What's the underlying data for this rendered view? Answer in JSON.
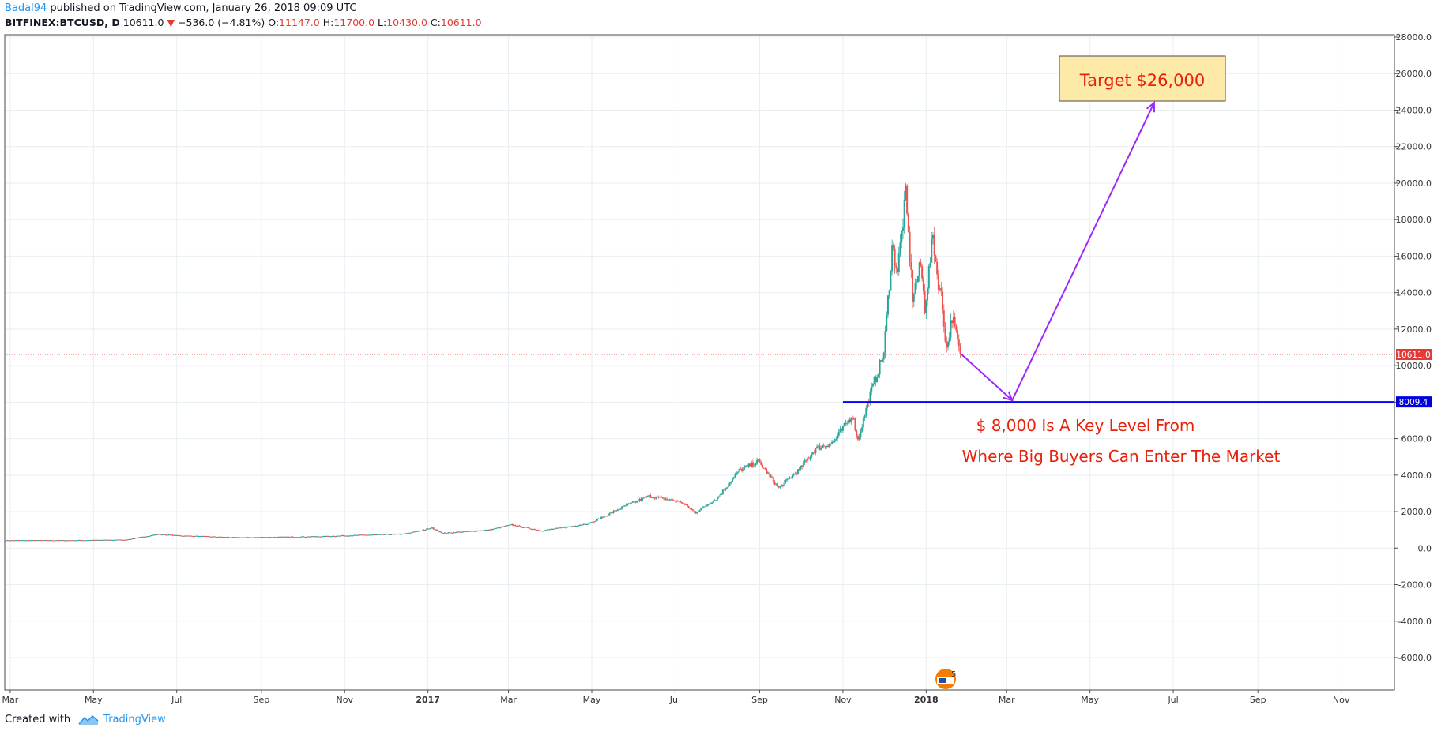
{
  "header": {
    "user": "Badal94",
    "published": "published on TradingView.com, January 26, 2018 09:09 UTC",
    "symbol": "BITFINEX:BTCUSD, D",
    "last": "10611.0",
    "change": "−536.0 (−4.81%)",
    "o_label": "O:",
    "o_value": "11147.0",
    "h_label": "H:",
    "h_value": "11700.0",
    "l_label": "L:",
    "l_value": "10430.0",
    "c_label": "C:",
    "c_value": "10611.0"
  },
  "footer": {
    "created_with": "Created with",
    "brand": "TradingView"
  },
  "colors": {
    "up": "#26a69a",
    "down": "#ef5350",
    "level": "#0000ff",
    "arrow": "#9c27ff",
    "grid": "#e8eef2"
  },
  "chart_data": {
    "type": "candlestick",
    "symbol": "BITFINEX:BTCUSD",
    "interval": "D",
    "ylim": [
      -7500,
      28000
    ],
    "y_ticks": [
      28000,
      26000,
      24000,
      22000,
      20000,
      18000,
      16000,
      14000,
      12000,
      10000,
      8000,
      6000,
      4000,
      2000,
      0,
      -2000,
      -4000,
      -6000
    ],
    "y_tick_labels": [
      "28000.0",
      "26000.0",
      "24000.0",
      "22000.0",
      "20000.0",
      "18000.0",
      "16000.0",
      "14000.0",
      "12000.0",
      "10000.0",
      "8000.0",
      "6000.0",
      "4000.0",
      "2000.0",
      "0.0",
      "-2000.0",
      "-4000.0",
      "-6000.0"
    ],
    "x_range": [
      "2016-02-26",
      "2018-12-10"
    ],
    "x_ticks": [
      {
        "date": "2016-03-01",
        "label": "Mar"
      },
      {
        "date": "2016-05-01",
        "label": "May"
      },
      {
        "date": "2016-07-01",
        "label": "Jul"
      },
      {
        "date": "2016-09-01",
        "label": "Sep"
      },
      {
        "date": "2016-11-01",
        "label": "Nov"
      },
      {
        "date": "2017-01-01",
        "label": "2017",
        "bold": true
      },
      {
        "date": "2017-03-01",
        "label": "Mar"
      },
      {
        "date": "2017-05-01",
        "label": "May"
      },
      {
        "date": "2017-07-01",
        "label": "Jul"
      },
      {
        "date": "2017-09-01",
        "label": "Sep"
      },
      {
        "date": "2017-11-01",
        "label": "Nov"
      },
      {
        "date": "2018-01-01",
        "label": "2018",
        "bold": true
      },
      {
        "date": "2018-03-01",
        "label": "Mar"
      },
      {
        "date": "2018-05-01",
        "label": "May"
      },
      {
        "date": "2018-07-01",
        "label": "Jul"
      },
      {
        "date": "2018-09-01",
        "label": "Sep"
      },
      {
        "date": "2018-11-01",
        "label": "Nov"
      }
    ],
    "price_path": [
      [
        "2016-02-27",
        430
      ],
      [
        "2016-04-15",
        430
      ],
      [
        "2016-05-25",
        460
      ],
      [
        "2016-06-17",
        760
      ],
      [
        "2016-07-01",
        690
      ],
      [
        "2016-08-15",
        580
      ],
      [
        "2016-09-15",
        610
      ],
      [
        "2016-10-15",
        640
      ],
      [
        "2016-11-15",
        720
      ],
      [
        "2016-12-15",
        780
      ],
      [
        "2017-01-04",
        1100
      ],
      [
        "2017-01-12",
        820
      ],
      [
        "2017-02-15",
        1000
      ],
      [
        "2017-03-03",
        1280
      ],
      [
        "2017-03-25",
        960
      ],
      [
        "2017-04-15",
        1180
      ],
      [
        "2017-05-01",
        1400
      ],
      [
        "2017-05-25",
        2300
      ],
      [
        "2017-06-12",
        2850
      ],
      [
        "2017-07-05",
        2550
      ],
      [
        "2017-07-16",
        1950
      ],
      [
        "2017-08-01",
        2750
      ],
      [
        "2017-08-17",
        4250
      ],
      [
        "2017-08-31",
        4750
      ],
      [
        "2017-09-15",
        3300
      ],
      [
        "2017-09-30",
        4300
      ],
      [
        "2017-10-12",
        5450
      ],
      [
        "2017-10-25",
        5800
      ],
      [
        "2017-11-08",
        7300
      ],
      [
        "2017-11-12",
        5900
      ],
      [
        "2017-11-20",
        8200
      ],
      [
        "2017-12-01",
        10700
      ],
      [
        "2017-12-07",
        16500
      ],
      [
        "2017-12-11",
        15200
      ],
      [
        "2017-12-17",
        19300
      ],
      [
        "2017-12-22",
        13800
      ],
      [
        "2017-12-28",
        15500
      ],
      [
        "2017-12-31",
        13200
      ],
      [
        "2018-01-06",
        17100
      ],
      [
        "2018-01-09",
        15000
      ],
      [
        "2018-01-12",
        13800
      ],
      [
        "2018-01-16",
        10900
      ],
      [
        "2018-01-20",
        12700
      ],
      [
        "2018-01-26",
        10611
      ]
    ],
    "last_price": 10611.0,
    "last_price_label": "10611.0",
    "horizontal_level": {
      "value": 8009.4,
      "label": "8009.4",
      "from": "2017-11-01"
    },
    "projection_arrows": [
      {
        "from": [
          "2018-01-27",
          10611
        ],
        "to": [
          "2018-03-05",
          8100
        ]
      },
      {
        "from": [
          "2018-03-05",
          8100
        ],
        "to": [
          "2018-06-17",
          24400
        ]
      }
    ],
    "annotations": {
      "target_box": "Target $26,000",
      "level_note_1": "$ 8,000 Is A Key Level From",
      "level_note_2": "Where Big Buyers Can Enter The Market"
    },
    "grid": true,
    "logo_mark_text": "5"
  }
}
